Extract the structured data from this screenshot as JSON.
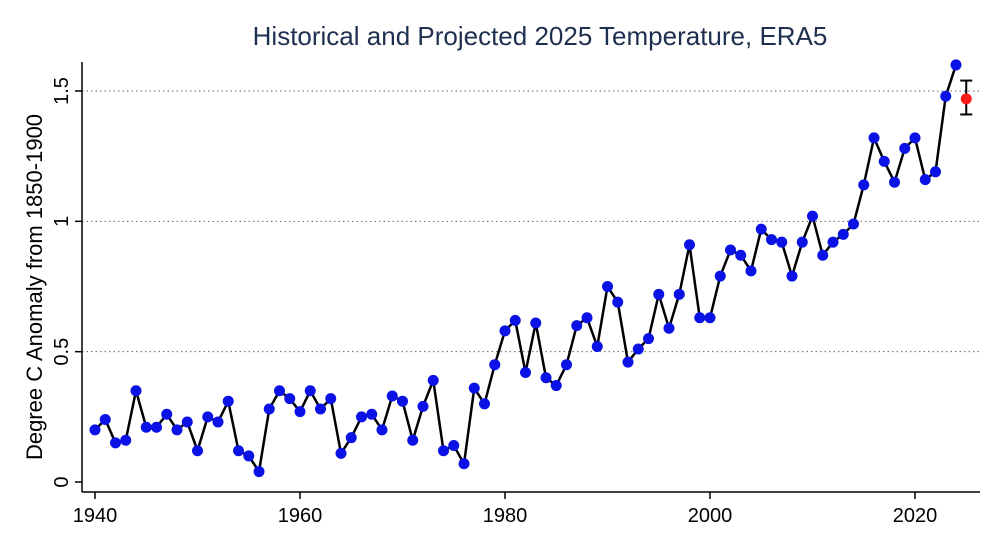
{
  "chart_data": {
    "type": "line",
    "title": "Historical and Projected 2025 Temperature, ERA5",
    "ylabel": "Degree C Anomaly from 1850-1900",
    "xlabel": "",
    "xlim": [
      1940,
      2026
    ],
    "ylim": [
      0,
      1.65
    ],
    "xticks": [
      1940,
      1960,
      1980,
      2000,
      2020
    ],
    "yticks": [
      0,
      0.5,
      1,
      1.5
    ],
    "ytick_labels": [
      "0",
      "0.5",
      "1",
      "1.5"
    ],
    "grid": "horizontal dotted",
    "colors": {
      "observed": "#0a12e6",
      "projected": "#ff1a1a",
      "line": "#000000"
    },
    "x": [
      1940,
      1941,
      1942,
      1943,
      1944,
      1945,
      1946,
      1947,
      1948,
      1949,
      1950,
      1951,
      1952,
      1953,
      1954,
      1955,
      1956,
      1957,
      1958,
      1959,
      1960,
      1961,
      1962,
      1963,
      1964,
      1965,
      1966,
      1967,
      1968,
      1969,
      1970,
      1971,
      1972,
      1973,
      1974,
      1975,
      1976,
      1977,
      1978,
      1979,
      1980,
      1981,
      1982,
      1983,
      1984,
      1985,
      1986,
      1987,
      1988,
      1989,
      1990,
      1991,
      1992,
      1993,
      1994,
      1995,
      1996,
      1997,
      1998,
      1999,
      2000,
      2001,
      2002,
      2003,
      2004,
      2005,
      2006,
      2007,
      2008,
      2009,
      2010,
      2011,
      2012,
      2013,
      2014,
      2015,
      2016,
      2017,
      2018,
      2019,
      2020,
      2021,
      2022,
      2023,
      2024
    ],
    "y": [
      0.2,
      0.24,
      0.15,
      0.16,
      0.35,
      0.21,
      0.21,
      0.26,
      0.2,
      0.23,
      0.12,
      0.25,
      0.23,
      0.31,
      0.12,
      0.1,
      0.04,
      0.28,
      0.35,
      0.32,
      0.27,
      0.35,
      0.28,
      0.32,
      0.11,
      0.17,
      0.25,
      0.26,
      0.2,
      0.33,
      0.31,
      0.16,
      0.29,
      0.39,
      0.12,
      0.14,
      0.07,
      0.36,
      0.3,
      0.45,
      0.58,
      0.62,
      0.42,
      0.61,
      0.4,
      0.37,
      0.45,
      0.6,
      0.63,
      0.52,
      0.75,
      0.69,
      0.46,
      0.51,
      0.55,
      0.72,
      0.59,
      0.72,
      0.91,
      0.63,
      0.63,
      0.79,
      0.89,
      0.87,
      0.81,
      0.97,
      0.93,
      0.92,
      0.79,
      0.92,
      1.02,
      0.87,
      0.92,
      0.95,
      0.99,
      1.14,
      1.32,
      1.23,
      1.15,
      1.28,
      1.32,
      1.16,
      1.19,
      1.48,
      1.6
    ],
    "projection": {
      "x": 2025,
      "y": 1.47,
      "low": 1.41,
      "high": 1.54
    }
  }
}
